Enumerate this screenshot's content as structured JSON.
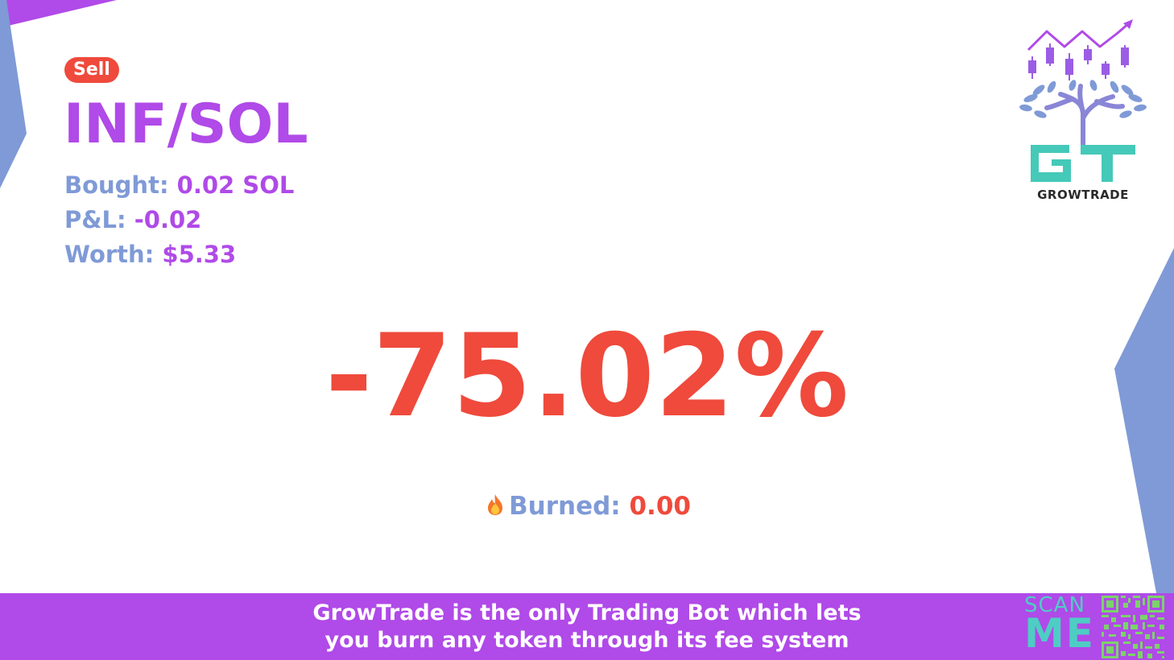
{
  "colors": {
    "accent_purple": "#b04ae8",
    "label_blue": "#7f9ad6",
    "negative_red": "#ef4a3c",
    "teal": "#4ecdc4"
  },
  "trade": {
    "side_badge": "Sell",
    "pair": "INF/SOL",
    "bought_label": "Bought:",
    "bought_value": "0.02 SOL",
    "pnl_label": "P&L:",
    "pnl_value": "-0.02",
    "worth_label": "Worth:",
    "worth_value": "$5.33",
    "percent_change": "-75.02%"
  },
  "burn": {
    "icon": "fire-icon",
    "label": "Burned:",
    "value": "0.00"
  },
  "logo": {
    "brand_name": "GROWTRADE"
  },
  "footer": {
    "line1": "GrowTrade is the only Trading Bot which lets",
    "line2": "you burn any token through its fee system",
    "scan_line1": "SCAN",
    "scan_line2": "ME"
  }
}
